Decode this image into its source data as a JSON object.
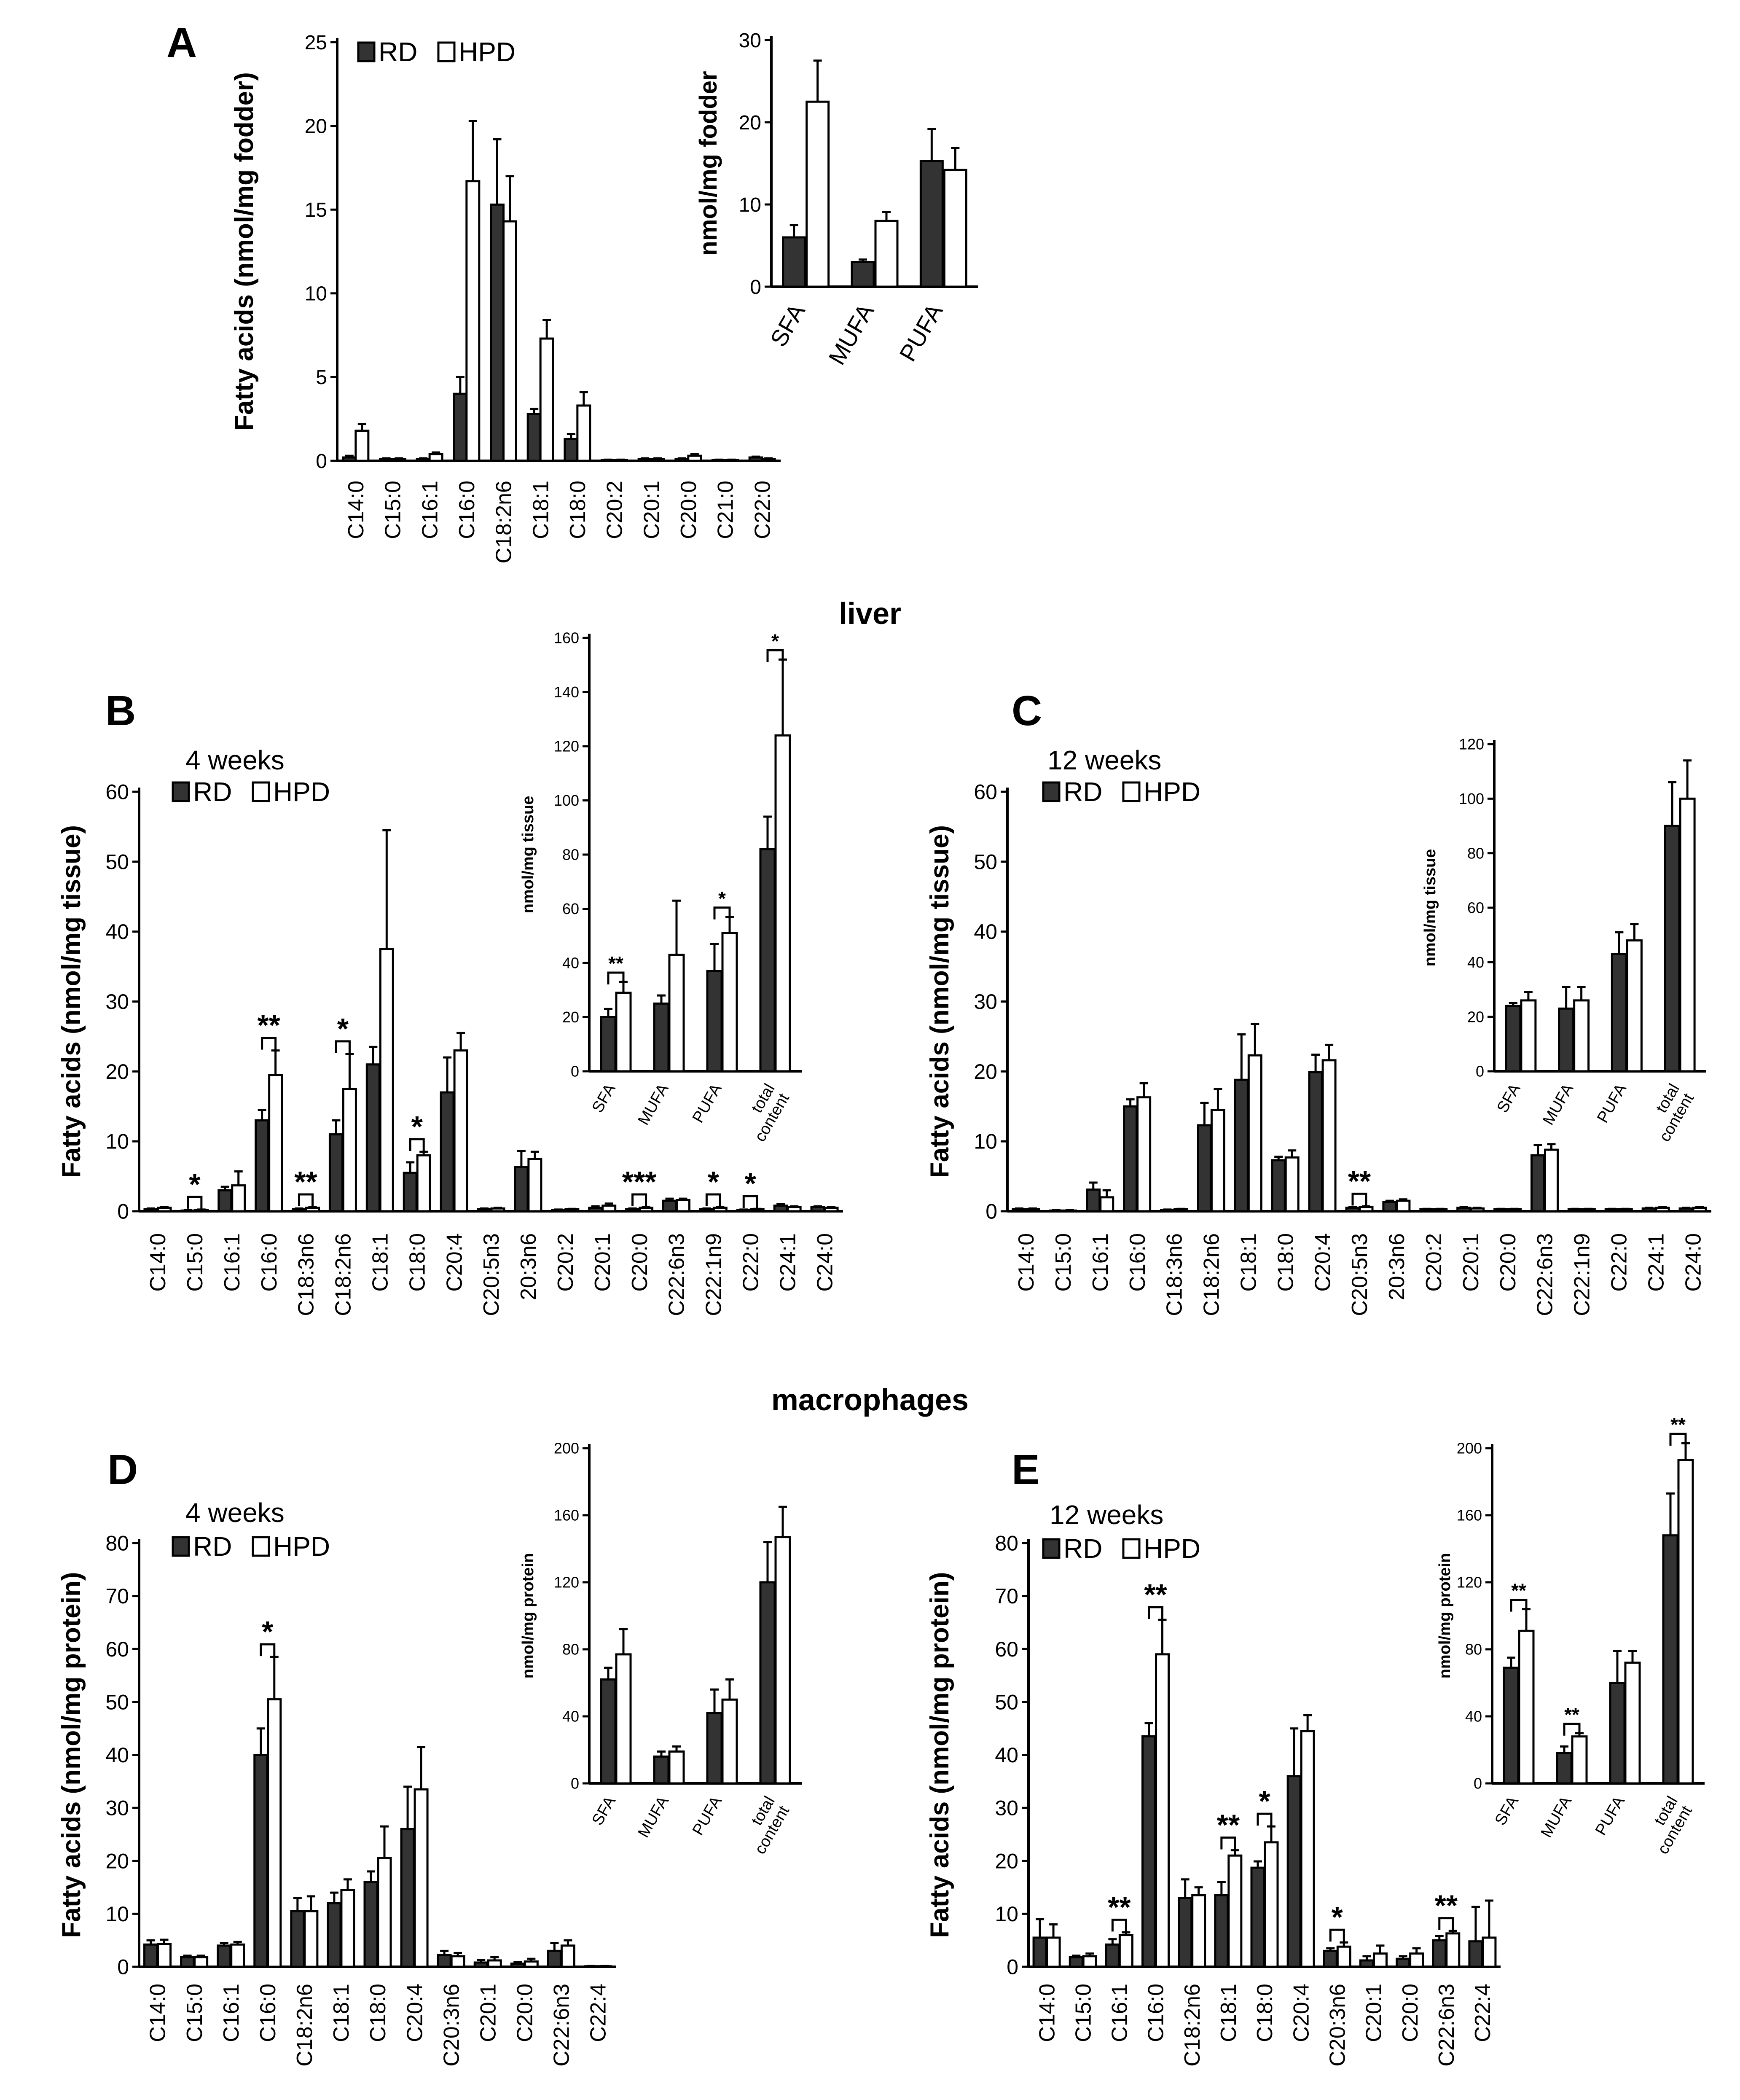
{
  "figure": {
    "section_liver": "liver",
    "section_macrophages": "macrophages"
  },
  "chart_data": [
    {
      "id": "A-main",
      "type": "bar",
      "panel_letter": "A",
      "ylabel": "Fatty acids (nmol/mg fodder)",
      "ylim": [
        0,
        25
      ],
      "yticks": [
        0,
        5,
        10,
        15,
        20,
        25
      ],
      "legend": [
        "RD",
        "HPD"
      ],
      "categories": [
        "C14:0",
        "C15:0",
        "C16:1",
        "C16:0",
        "C18:2n6",
        "C18:1",
        "C18:0",
        "C20:2",
        "C20:1",
        "C20:0",
        "C21:0",
        "C22:0"
      ],
      "series": [
        {
          "name": "RD",
          "values": [
            0.2,
            0.1,
            0.1,
            4.0,
            15.3,
            2.8,
            1.3,
            0.05,
            0.1,
            0.1,
            0.05,
            0.2
          ],
          "errors": [
            0.1,
            0.05,
            0.05,
            1.0,
            3.9,
            0.3,
            0.3,
            0.02,
            0.05,
            0.05,
            0.02,
            0.05
          ]
        },
        {
          "name": "HPD",
          "values": [
            1.8,
            0.1,
            0.4,
            16.7,
            14.3,
            7.3,
            3.3,
            0.05,
            0.1,
            0.3,
            0.05,
            0.1
          ],
          "errors": [
            0.4,
            0.05,
            0.1,
            3.6,
            2.7,
            1.1,
            0.8,
            0.02,
            0.05,
            0.1,
            0.02,
            0.05
          ]
        }
      ],
      "annotations": []
    },
    {
      "id": "A-inset",
      "type": "bar",
      "ylabel": "nmol/mg fodder",
      "ylim": [
        0,
        30
      ],
      "yticks": [
        0,
        10,
        20,
        30
      ],
      "categories": [
        "SFA",
        "MUFA",
        "PUFA"
      ],
      "series": [
        {
          "name": "RD",
          "values": [
            6.0,
            3.0,
            15.3
          ],
          "errors": [
            1.5,
            0.3,
            3.9
          ]
        },
        {
          "name": "HPD",
          "values": [
            22.5,
            8.0,
            14.2
          ],
          "errors": [
            5.0,
            1.1,
            2.7
          ]
        }
      ],
      "annotations": []
    },
    {
      "id": "B-main",
      "type": "bar",
      "panel_letter": "B",
      "subtitle": "4 weeks",
      "ylabel": "Fatty acids (nmol/mg tissue)",
      "ylim": [
        0,
        60
      ],
      "yticks": [
        0,
        10,
        20,
        30,
        40,
        50,
        60
      ],
      "legend": [
        "RD",
        "HPD"
      ],
      "categories": [
        "C14:0",
        "C15:0",
        "C16:1",
        "C16:0",
        "C18:3n6",
        "C18:2n6",
        "C18:1",
        "C18:0",
        "C20:4",
        "C20:5n3",
        "20:3n6",
        "C20:2",
        "C20:1",
        "C20:0",
        "C22:6n3",
        "C22:1n9",
        "C22:0",
        "C24:1",
        "C24:0"
      ],
      "series": [
        {
          "name": "RD",
          "values": [
            0.3,
            0.1,
            3.0,
            13.0,
            0.3,
            11.0,
            21.0,
            5.5,
            17.0,
            0.3,
            6.3,
            0.2,
            0.5,
            0.3,
            1.5,
            0.3,
            0.2,
            0.8,
            0.6
          ],
          "errors": [
            0.1,
            0.05,
            0.5,
            1.5,
            0.1,
            2.0,
            2.5,
            1.5,
            5.0,
            0.1,
            2.3,
            0.05,
            0.2,
            0.1,
            0.3,
            0.1,
            0.05,
            0.2,
            0.1
          ]
        },
        {
          "name": "HPD",
          "values": [
            0.5,
            0.2,
            3.7,
            19.5,
            0.5,
            17.5,
            37.5,
            8.0,
            23.0,
            0.4,
            7.5,
            0.3,
            0.8,
            0.5,
            1.6,
            0.5,
            0.3,
            0.6,
            0.5
          ],
          "errors": [
            0.1,
            0.05,
            2.0,
            3.5,
            0.1,
            5.0,
            17.0,
            0.5,
            2.5,
            0.1,
            1.0,
            0.05,
            0.3,
            0.1,
            0.2,
            0.1,
            0.05,
            0.1,
            0.1
          ]
        }
      ],
      "annotations": [
        {
          "index": 1,
          "label": "*"
        },
        {
          "index": 3,
          "label": "**"
        },
        {
          "index": 4,
          "label": "**"
        },
        {
          "index": 5,
          "label": "*"
        },
        {
          "index": 7,
          "label": "*"
        },
        {
          "index": 13,
          "label": "***"
        },
        {
          "index": 15,
          "label": "*"
        },
        {
          "index": 16,
          "label": "*"
        }
      ]
    },
    {
      "id": "B-inset",
      "type": "bar",
      "ylabel": "nmol/mg tissue",
      "ylim": [
        0,
        160
      ],
      "yticks": [
        0,
        20,
        40,
        60,
        80,
        100,
        120,
        140,
        160
      ],
      "categories": [
        "SFA",
        "MUFA",
        "PUFA",
        "total content"
      ],
      "series": [
        {
          "name": "RD",
          "values": [
            20,
            25,
            37,
            82
          ],
          "errors": [
            3,
            3,
            10,
            12
          ]
        },
        {
          "name": "HPD",
          "values": [
            29,
            43,
            51,
            124
          ],
          "errors": [
            4,
            20,
            6,
            28
          ]
        }
      ],
      "annotations": [
        {
          "index": 0,
          "label": "**"
        },
        {
          "index": 2,
          "label": "*"
        },
        {
          "index": 3,
          "label": "*"
        }
      ]
    },
    {
      "id": "C-main",
      "type": "bar",
      "panel_letter": "C",
      "subtitle": "12 weeks",
      "ylabel": "Fatty acids (nmol/mg tissue)",
      "ylim": [
        0,
        60
      ],
      "yticks": [
        0,
        10,
        20,
        30,
        40,
        50,
        60
      ],
      "legend": [
        "RD",
        "HPD"
      ],
      "categories": [
        "C14:0",
        "C15:0",
        "C16:1",
        "C16:0",
        "C18:3n6",
        "C18:2n6",
        "C18:1",
        "C18:0",
        "C20:4",
        "C20:5n3",
        "20:3n6",
        "C20:2",
        "C20:1",
        "C20:0",
        "C22:6n3",
        "C22:1n9",
        "C22:0",
        "C24:1",
        "C24:0"
      ],
      "series": [
        {
          "name": "RD",
          "values": [
            0.3,
            0.1,
            3.1,
            15.0,
            0.2,
            12.3,
            18.8,
            7.3,
            19.9,
            0.5,
            1.3,
            0.3,
            0.5,
            0.3,
            8.0,
            0.3,
            0.3,
            0.4,
            0.4
          ],
          "errors": [
            0.1,
            0.05,
            1.0,
            1.0,
            0.05,
            3.2,
            6.5,
            0.5,
            2.5,
            0.1,
            0.2,
            0.05,
            0.1,
            0.05,
            1.5,
            0.05,
            0.05,
            0.1,
            0.1
          ]
        },
        {
          "name": "HPD",
          "values": [
            0.3,
            0.1,
            2.0,
            16.3,
            0.3,
            14.5,
            22.3,
            7.7,
            21.6,
            0.6,
            1.5,
            0.3,
            0.4,
            0.3,
            8.8,
            0.3,
            0.3,
            0.5,
            0.5
          ],
          "errors": [
            0.1,
            0.05,
            1.0,
            2.0,
            0.05,
            3.0,
            4.5,
            1.0,
            2.2,
            0.1,
            0.2,
            0.05,
            0.1,
            0.05,
            0.8,
            0.05,
            0.05,
            0.1,
            0.1
          ]
        }
      ],
      "annotations": [
        {
          "index": 9,
          "label": "**"
        }
      ]
    },
    {
      "id": "C-inset",
      "type": "bar",
      "ylabel": "nmol/mg tissue",
      "ylim": [
        0,
        120
      ],
      "yticks": [
        0,
        20,
        40,
        60,
        80,
        100,
        120
      ],
      "categories": [
        "SFA",
        "MUFA",
        "PUFA",
        "total content"
      ],
      "series": [
        {
          "name": "RD",
          "values": [
            24,
            23,
            43,
            90
          ],
          "errors": [
            1,
            8,
            8,
            16
          ]
        },
        {
          "name": "HPD",
          "values": [
            26,
            26,
            48,
            100
          ],
          "errors": [
            3,
            5,
            6,
            14
          ]
        }
      ],
      "annotations": []
    },
    {
      "id": "D-main",
      "type": "bar",
      "panel_letter": "D",
      "subtitle": "4 weeks",
      "ylabel": "Fatty acids (nmol/mg protein)",
      "ylim": [
        0,
        80
      ],
      "yticks": [
        0,
        10,
        20,
        30,
        40,
        50,
        60,
        70,
        80
      ],
      "legend": [
        "RD",
        "HPD"
      ],
      "categories": [
        "C14:0",
        "C15:0",
        "C16:1",
        "C16:0",
        "C18:2n6",
        "C18:1",
        "C18:0",
        "C20:4",
        "C20:3n6",
        "C20:1",
        "C20:0",
        "C22:6n3",
        "C22:4"
      ],
      "series": [
        {
          "name": "RD",
          "values": [
            4.2,
            1.8,
            4.0,
            40.0,
            10.5,
            12.0,
            16.0,
            26.0,
            2.2,
            0.8,
            0.6,
            3.0,
            0.1
          ],
          "errors": [
            0.8,
            0.3,
            0.5,
            5.0,
            2.5,
            2.0,
            2.0,
            8.0,
            0.8,
            0.5,
            0.3,
            1.5,
            0.05
          ]
        },
        {
          "name": "HPD",
          "values": [
            4.3,
            1.8,
            4.2,
            50.5,
            10.5,
            14.5,
            20.5,
            33.5,
            2.0,
            1.2,
            1.0,
            4.0,
            0.1
          ],
          "errors": [
            0.8,
            0.3,
            0.5,
            8.0,
            2.8,
            2.0,
            6.0,
            8.0,
            0.6,
            0.6,
            0.5,
            1.0,
            0.05
          ]
        }
      ],
      "annotations": [
        {
          "index": 3,
          "label": "*"
        }
      ]
    },
    {
      "id": "D-inset",
      "type": "bar",
      "ylabel": "nmol/mg protein",
      "ylim": [
        0,
        200
      ],
      "yticks": [
        0,
        40,
        80,
        120,
        160,
        200
      ],
      "categories": [
        "SFA",
        "MUFA",
        "PUFA",
        "total content"
      ],
      "series": [
        {
          "name": "RD",
          "values": [
            62,
            16,
            42,
            120
          ],
          "errors": [
            7,
            3,
            14,
            24
          ]
        },
        {
          "name": "HPD",
          "values": [
            77,
            19,
            50,
            147
          ],
          "errors": [
            15,
            3,
            12,
            18
          ]
        }
      ],
      "annotations": []
    },
    {
      "id": "E-main",
      "type": "bar",
      "panel_letter": "E",
      "subtitle": "12 weeks",
      "ylabel": "Fatty acids (nmol/mg protein)",
      "ylim": [
        0,
        80
      ],
      "yticks": [
        0,
        10,
        20,
        30,
        40,
        50,
        60,
        70,
        80
      ],
      "legend": [
        "RD",
        "HPD"
      ],
      "categories": [
        "C14:0",
        "C15:0",
        "C16:1",
        "C16:0",
        "C18:2n6",
        "C18:1",
        "C18:0",
        "C20:4",
        "C20:3n6",
        "C20:1",
        "C20:0",
        "C22:6n3",
        "C22:4"
      ],
      "series": [
        {
          "name": "RD",
          "values": [
            5.5,
            1.8,
            4.2,
            43.5,
            13.0,
            13.5,
            18.7,
            36.0,
            3.0,
            1.2,
            1.5,
            5.0,
            4.8
          ],
          "errors": [
            3.5,
            0.3,
            1.0,
            2.5,
            3.5,
            2.5,
            1.2,
            9.0,
            0.5,
            0.8,
            0.5,
            0.8,
            6.5
          ]
        },
        {
          "name": "HPD",
          "values": [
            5.5,
            2.0,
            6.0,
            59.0,
            13.5,
            21.0,
            23.5,
            44.5,
            3.8,
            2.5,
            2.5,
            6.3,
            5.5
          ],
          "errors": [
            2.5,
            0.5,
            0.5,
            6.5,
            1.5,
            1.0,
            3.0,
            3.0,
            0.8,
            1.5,
            1.0,
            0.5,
            7.0
          ]
        }
      ],
      "annotations": [
        {
          "index": 2,
          "label": "**"
        },
        {
          "index": 3,
          "label": "**"
        },
        {
          "index": 5,
          "label": "**"
        },
        {
          "index": 6,
          "label": "*"
        },
        {
          "index": 8,
          "label": "*"
        },
        {
          "index": 11,
          "label": "**"
        }
      ]
    },
    {
      "id": "E-inset",
      "type": "bar",
      "ylabel": "nmol/mg protein",
      "ylim": [
        0,
        200
      ],
      "yticks": [
        0,
        40,
        80,
        120,
        160,
        200
      ],
      "categories": [
        "SFA",
        "MUFA",
        "PUFA",
        "total content"
      ],
      "series": [
        {
          "name": "RD",
          "values": [
            69,
            18,
            60,
            148
          ],
          "errors": [
            6,
            4,
            19,
            25
          ]
        },
        {
          "name": "HPD",
          "values": [
            91,
            28,
            72,
            193
          ],
          "errors": [
            13,
            2,
            7,
            10
          ]
        }
      ],
      "annotations": [
        {
          "index": 0,
          "label": "**"
        },
        {
          "index": 1,
          "label": "**"
        },
        {
          "index": 3,
          "label": "**"
        }
      ]
    }
  ]
}
